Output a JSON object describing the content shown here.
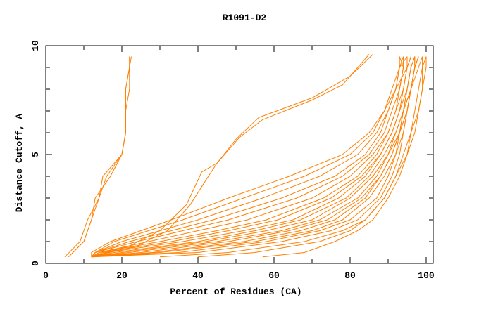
{
  "chart_data": {
    "type": "line",
    "title": "R1091-D2",
    "xlabel": "Percent of Residues (CA)",
    "ylabel": "Distance Cutoff, A",
    "xlim": [
      0,
      100
    ],
    "ylim": [
      0,
      10
    ],
    "xticks": [
      0,
      20,
      40,
      60,
      80,
      100
    ],
    "yticks": [
      0,
      5,
      10
    ],
    "grid": false,
    "line_color": "#ff7f00",
    "series": [
      {
        "x": [
          5,
          9,
          11,
          14,
          15,
          20,
          21,
          21,
          22,
          22,
          22.5
        ],
        "y": [
          0.3,
          1,
          2,
          3,
          4,
          5,
          6,
          7,
          8,
          9,
          9.5
        ]
      },
      {
        "x": [
          6,
          10,
          12,
          13,
          17,
          20,
          21,
          21,
          21,
          22,
          22
        ],
        "y": [
          0.3,
          1,
          2,
          3,
          4,
          5,
          6,
          7,
          8,
          9,
          9.5
        ]
      },
      {
        "x": [
          6,
          10,
          12,
          14,
          16,
          20,
          21,
          21,
          21,
          22,
          22
        ],
        "y": [
          0.3,
          1,
          2,
          3,
          4,
          5,
          6,
          7,
          8,
          9,
          9.5
        ]
      },
      {
        "x": [
          12,
          22,
          30,
          37,
          41,
          45,
          50,
          56,
          70,
          80,
          86
        ],
        "y": [
          0.3,
          0.8,
          1.5,
          2.7,
          4.2,
          4.6,
          5.7,
          6.7,
          7.6,
          8.6,
          9.6
        ]
      },
      {
        "x": [
          12,
          24,
          32,
          38,
          42,
          45,
          51,
          57,
          70,
          78,
          85
        ],
        "y": [
          0.3,
          0.8,
          1.5,
          2.7,
          3.8,
          4.6,
          5.8,
          6.6,
          7.5,
          8.2,
          9.6
        ]
      },
      {
        "x": [
          12,
          40,
          62,
          75,
          82,
          88,
          91,
          93,
          94,
          95,
          96,
          97,
          97
        ],
        "y": [
          0.3,
          0.5,
          1,
          1.5,
          2,
          3,
          4,
          5,
          6,
          7,
          8,
          9,
          9.5
        ]
      },
      {
        "x": [
          12,
          35,
          58,
          72,
          80,
          87,
          90,
          92,
          94,
          95,
          96,
          97,
          98
        ],
        "y": [
          0.3,
          0.5,
          1,
          1.5,
          2,
          3,
          4,
          5,
          6,
          7,
          8,
          9,
          9.5
        ]
      },
      {
        "x": [
          12,
          30,
          55,
          70,
          78,
          85,
          89,
          92,
          93,
          95,
          96,
          97,
          97
        ],
        "y": [
          0.3,
          0.5,
          1,
          1.5,
          2,
          3,
          4,
          5,
          6,
          7,
          8,
          9,
          9.5
        ]
      },
      {
        "x": [
          12,
          28,
          52,
          67,
          76,
          84,
          88,
          91,
          93,
          94,
          96,
          97,
          98
        ],
        "y": [
          0.3,
          0.5,
          1,
          1.5,
          2,
          3,
          4,
          5,
          6,
          7,
          8,
          9,
          9.5
        ]
      },
      {
        "x": [
          12,
          25,
          48,
          64,
          74,
          83,
          88,
          91,
          93,
          95,
          96,
          98,
          99
        ],
        "y": [
          0.3,
          0.5,
          1,
          1.5,
          2,
          3,
          4,
          5,
          6,
          7,
          8,
          9,
          9.5
        ]
      },
      {
        "x": [
          12,
          22,
          45,
          62,
          72,
          82,
          87,
          90,
          93,
          94,
          95,
          96,
          97
        ],
        "y": [
          0.3,
          0.5,
          1,
          1.5,
          2,
          3,
          4,
          5,
          6,
          7,
          8,
          9,
          9.5
        ]
      },
      {
        "x": [
          12,
          20,
          42,
          58,
          70,
          80,
          86,
          90,
          92,
          94,
          96,
          97,
          98
        ],
        "y": [
          0.3,
          0.5,
          1,
          1.5,
          2,
          3,
          4,
          5,
          6,
          7,
          8,
          9,
          9.5
        ]
      },
      {
        "x": [
          12,
          18,
          40,
          55,
          67,
          79,
          85,
          89,
          92,
          94,
          95,
          96,
          96
        ],
        "y": [
          0.3,
          0.5,
          1,
          1.5,
          2,
          3,
          4,
          5,
          6,
          7,
          8,
          9,
          9.5
        ]
      },
      {
        "x": [
          12,
          16,
          36,
          52,
          65,
          77,
          84,
          88,
          91,
          93,
          94,
          95,
          95
        ],
        "y": [
          0.3,
          0.5,
          1,
          1.5,
          2,
          3,
          4,
          5,
          6,
          7,
          8,
          9,
          9.5
        ]
      },
      {
        "x": [
          12,
          15,
          33,
          48,
          61,
          75,
          83,
          88,
          91,
          93,
          95,
          96,
          97
        ],
        "y": [
          0.3,
          0.5,
          1,
          1.5,
          2,
          3,
          4,
          5,
          6,
          7,
          8,
          9,
          9.5
        ]
      },
      {
        "x": [
          12,
          14,
          30,
          45,
          58,
          73,
          82,
          87,
          90,
          92,
          94,
          95,
          96
        ],
        "y": [
          0.3,
          0.5,
          1,
          1.5,
          2,
          3,
          4,
          5,
          6,
          7,
          8,
          9,
          9.5
        ]
      },
      {
        "x": [
          12,
          14,
          27,
          40,
          53,
          70,
          80,
          86,
          90,
          92,
          93,
          94,
          94
        ],
        "y": [
          0.3,
          0.5,
          1,
          1.5,
          2,
          3,
          4,
          5,
          6,
          7,
          8,
          9,
          9.5
        ]
      },
      {
        "x": [
          12,
          13,
          24,
          36,
          48,
          66,
          78,
          85,
          89,
          91,
          93,
          94,
          93
        ],
        "y": [
          0.3,
          0.5,
          1,
          1.5,
          2,
          3,
          4,
          5,
          6,
          7,
          8,
          9,
          9.5
        ]
      },
      {
        "x": [
          12,
          13,
          22,
          33,
          44,
          62,
          76,
          84,
          88,
          90,
          92,
          93,
          93
        ],
        "y": [
          0.3,
          0.5,
          1,
          1.5,
          2,
          3,
          4,
          5,
          6,
          7,
          8,
          9,
          9.5
        ]
      },
      {
        "x": [
          12,
          13,
          20,
          30,
          40,
          57,
          72,
          82,
          87,
          90,
          92,
          93,
          94
        ],
        "y": [
          0.3,
          0.5,
          1,
          1.5,
          2,
          3,
          4,
          5,
          6,
          7,
          8,
          9,
          9.5
        ]
      },
      {
        "x": [
          12,
          13,
          18,
          27,
          36,
          52,
          68,
          80,
          86,
          89,
          91,
          93,
          95
        ],
        "y": [
          0.3,
          0.5,
          1,
          1.5,
          2,
          3,
          4,
          5,
          6,
          7,
          8,
          9,
          9.5
        ]
      },
      {
        "x": [
          12,
          12,
          17,
          25,
          33,
          48,
          64,
          78,
          85,
          89,
          92,
          95,
          96
        ],
        "y": [
          0.3,
          0.5,
          1,
          1.5,
          2,
          3,
          4,
          5,
          6,
          7,
          8,
          9,
          9.5
        ]
      },
      {
        "x": [
          57,
          68,
          76,
          82,
          86,
          90,
          93,
          95,
          96,
          97,
          98,
          99,
          99
        ],
        "y": [
          0.3,
          0.5,
          1,
          1.5,
          2,
          3,
          4,
          5,
          6,
          7,
          8,
          9,
          9.5
        ]
      },
      {
        "x": [
          40,
          55,
          72,
          80,
          84,
          89,
          92,
          94,
          96,
          98,
          99,
          99,
          100
        ],
        "y": [
          0.3,
          0.5,
          1,
          1.5,
          2,
          3,
          4,
          5,
          6,
          7,
          8,
          9,
          9.5
        ]
      },
      {
        "x": [
          30,
          48,
          68,
          78,
          84,
          89,
          92,
          95,
          97,
          98,
          99,
          100,
          100
        ],
        "y": [
          0.3,
          0.5,
          1,
          1.5,
          2,
          3,
          4,
          5,
          6,
          7,
          8,
          9,
          9.5
        ]
      }
    ]
  }
}
